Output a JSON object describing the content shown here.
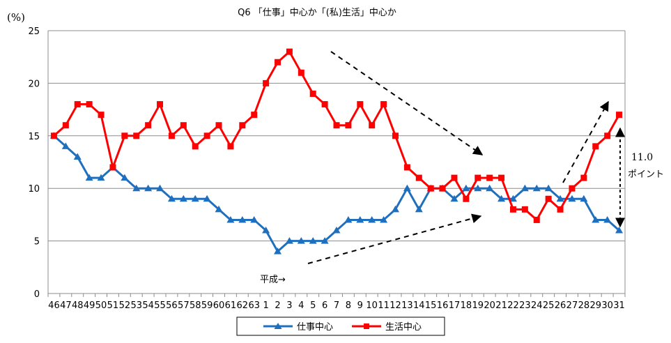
{
  "chart_data": {
    "type": "line",
    "title": "Q6 「仕事」中心か「(私)生活」中心か",
    "yunit": "(%)",
    "ylim": [
      0,
      25
    ],
    "yticks": [
      0,
      5,
      10,
      15,
      20,
      25
    ],
    "grid": true,
    "legend_position": "bottom",
    "categories": [
      "46",
      "47",
      "48",
      "49",
      "50",
      "51",
      "52",
      "53",
      "54",
      "55",
      "56",
      "57",
      "58",
      "59",
      "60",
      "61",
      "62",
      "63",
      "1",
      "2",
      "3",
      "4",
      "5",
      "6",
      "7",
      "8",
      "9",
      "10",
      "11",
      "12",
      "13",
      "14",
      "15",
      "16",
      "17",
      "18",
      "19",
      "20",
      "21",
      "22",
      "23",
      "24",
      "25",
      "26",
      "27",
      "28",
      "29",
      "30",
      "31"
    ],
    "series": [
      {
        "name": "仕事中心",
        "color": "#1f6fbf",
        "marker": "triangle",
        "values": [
          15,
          14,
          13,
          11,
          11,
          12,
          11,
          10,
          10,
          10,
          9,
          9,
          9,
          9,
          8,
          7,
          7,
          7,
          6,
          4,
          5,
          5,
          5,
          5,
          6,
          7,
          7,
          7,
          7,
          8,
          10,
          8,
          10,
          10,
          9,
          10,
          10,
          10,
          9,
          9,
          10,
          10,
          10,
          9,
          9,
          9,
          7,
          7,
          6
        ]
      },
      {
        "name": "生活中心",
        "color": "#ff0000",
        "marker": "square",
        "values": [
          15,
          16,
          18,
          18,
          17,
          12,
          15,
          15,
          16,
          18,
          15,
          16,
          14,
          15,
          16,
          14,
          16,
          17,
          20,
          22,
          23,
          21,
          19,
          18,
          16,
          16,
          18,
          16,
          18,
          15,
          12,
          11,
          10,
          10,
          11,
          9,
          11,
          11,
          11,
          8,
          8,
          7,
          9,
          8,
          10,
          11,
          14,
          15,
          17
        ]
      }
    ],
    "annotations": {
      "era_label": "平成→",
      "gap_value": "11.0",
      "gap_unit": "ポイント"
    }
  }
}
